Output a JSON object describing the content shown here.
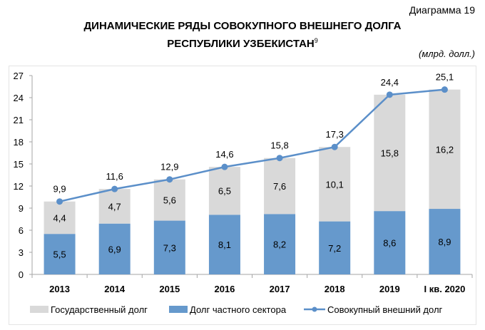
{
  "diagram_label": "Диаграмма 19",
  "title_line1": "ДИНАМИЧЕСКИЕ РЯДЫ СОВОКУПНОГО ВНЕШНЕГО ДОЛГА",
  "title_line2": "РЕСПУБЛИКИ УЗБЕКИСТАН",
  "title_footnote": "9",
  "unit": "(млрд. долл.)",
  "colors": {
    "government": "#d9d9d9",
    "private": "#6699cc",
    "total": "#5b8fc9"
  },
  "chart_data": {
    "type": "bar",
    "stacked": true,
    "categories": [
      "2013",
      "2014",
      "2015",
      "2016",
      "2017",
      "2018",
      "2019",
      "I кв. 2020"
    ],
    "series": [
      {
        "name": "Долг частного сектора",
        "values": [
          5.5,
          6.9,
          7.3,
          8.1,
          8.2,
          7.2,
          8.6,
          8.9
        ],
        "labels": [
          "5,5",
          "6,9",
          "7,3",
          "8,1",
          "8,2",
          "7,2",
          "8,6",
          "8,9"
        ]
      },
      {
        "name": "Государственный долг",
        "values": [
          4.4,
          4.7,
          5.6,
          6.5,
          7.6,
          10.1,
          15.8,
          16.2
        ],
        "labels": [
          "4,4",
          "4,7",
          "5,6",
          "6,5",
          "7,6",
          "10,1",
          "15,8",
          "16,2"
        ]
      },
      {
        "name": "Совокупный внешний долг",
        "type": "line",
        "values": [
          9.9,
          11.6,
          12.9,
          14.6,
          15.8,
          17.3,
          24.4,
          25.1
        ],
        "labels": [
          "9,9",
          "11,6",
          "12,9",
          "14,6",
          "15,8",
          "17,3",
          "24,4",
          "25,1"
        ]
      }
    ],
    "yticks": [
      "0",
      "3",
      "6",
      "9",
      "12",
      "15",
      "18",
      "21",
      "24",
      "27"
    ],
    "ylim": [
      0,
      27
    ],
    "legend": [
      "Государственный долг",
      "Долг частного сектора",
      "Совокупный внешний долг"
    ],
    "legend_position": "bottom"
  }
}
